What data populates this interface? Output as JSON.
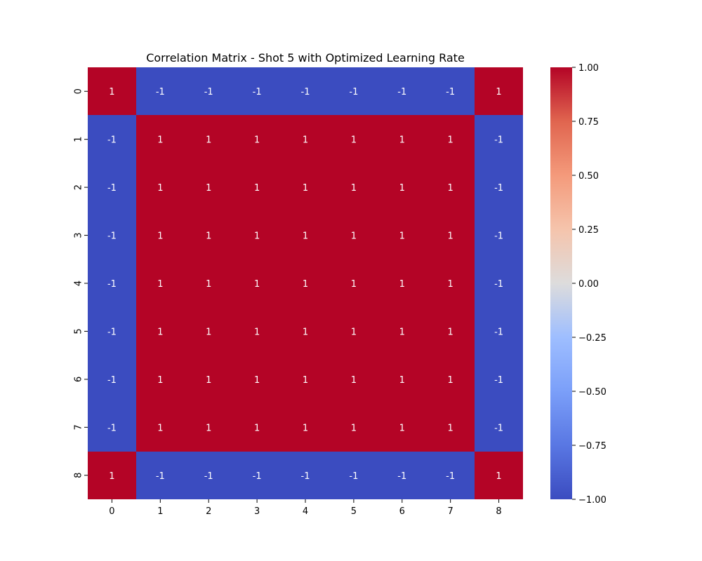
{
  "chart_data": {
    "type": "heatmap",
    "title": "Correlation Matrix - Shot 5 with Optimized Learning Rate",
    "xlabel": "",
    "ylabel": "",
    "x_ticks": [
      "0",
      "1",
      "2",
      "3",
      "4",
      "5",
      "6",
      "7",
      "8"
    ],
    "y_ticks": [
      "0",
      "1",
      "2",
      "3",
      "4",
      "5",
      "6",
      "7",
      "8"
    ],
    "values": [
      [
        1,
        -1,
        -1,
        -1,
        -1,
        -1,
        -1,
        -1,
        1
      ],
      [
        -1,
        1,
        1,
        1,
        1,
        1,
        1,
        1,
        -1
      ],
      [
        -1,
        1,
        1,
        1,
        1,
        1,
        1,
        1,
        -1
      ],
      [
        -1,
        1,
        1,
        1,
        1,
        1,
        1,
        1,
        -1
      ],
      [
        -1,
        1,
        1,
        1,
        1,
        1,
        1,
        1,
        -1
      ],
      [
        -1,
        1,
        1,
        1,
        1,
        1,
        1,
        1,
        -1
      ],
      [
        -1,
        1,
        1,
        1,
        1,
        1,
        1,
        1,
        -1
      ],
      [
        -1,
        1,
        1,
        1,
        1,
        1,
        1,
        1,
        -1
      ],
      [
        1,
        -1,
        -1,
        -1,
        -1,
        -1,
        -1,
        -1,
        1
      ]
    ],
    "cell_labels": [
      [
        "1",
        "-1",
        "-1",
        "-1",
        "-1",
        "-1",
        "-1",
        "-1",
        "1"
      ],
      [
        "-1",
        "1",
        "1",
        "1",
        "1",
        "1",
        "1",
        "1",
        "-1"
      ],
      [
        "-1",
        "1",
        "1",
        "1",
        "1",
        "1",
        "1",
        "1",
        "-1"
      ],
      [
        "-1",
        "1",
        "1",
        "1",
        "1",
        "1",
        "1",
        "1",
        "-1"
      ],
      [
        "-1",
        "1",
        "1",
        "1",
        "1",
        "1",
        "1",
        "1",
        "-1"
      ],
      [
        "-1",
        "1",
        "1",
        "1",
        "1",
        "1",
        "1",
        "1",
        "-1"
      ],
      [
        "-1",
        "1",
        "1",
        "1",
        "1",
        "1",
        "1",
        "1",
        "-1"
      ],
      [
        "-1",
        "1",
        "1",
        "1",
        "1",
        "1",
        "1",
        "1",
        "-1"
      ],
      [
        "1",
        "-1",
        "-1",
        "-1",
        "-1",
        "-1",
        "-1",
        "-1",
        "1"
      ]
    ],
    "colormap": "coolwarm",
    "vmin": -1.0,
    "vmax": 1.0,
    "colorbar_ticks": [
      1.0,
      0.75,
      0.5,
      0.25,
      0.0,
      -0.25,
      -0.5,
      -0.75,
      -1.0
    ],
    "colorbar_tick_labels": [
      "1.00",
      "0.75",
      "0.50",
      "0.25",
      "0.00",
      "−0.25",
      "−0.50",
      "−0.75",
      "−1.00"
    ],
    "colors": {
      "positive": "#b40426",
      "negative": "#3b4cc0"
    },
    "grid": false,
    "legend": "colorbar-right"
  }
}
